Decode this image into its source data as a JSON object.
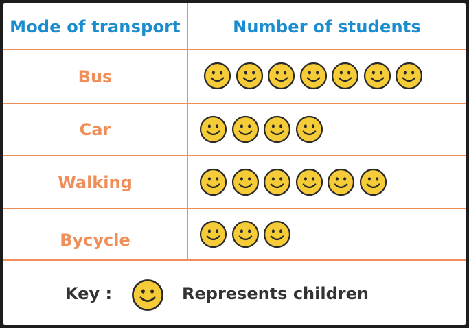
{
  "chart_data": {
    "type": "pictograph",
    "columns": [
      "Mode of transport",
      "Number of students"
    ],
    "categories": [
      "Bus",
      "Car",
      "Walking",
      "Bycycle"
    ],
    "values": [
      7,
      4,
      6,
      3
    ],
    "key": {
      "label": "Key :",
      "icon": "smiley-face",
      "text": "Represents children"
    }
  },
  "colors": {
    "header": "#1b8ccd",
    "category": "#ef8e58",
    "border": "#ef8e58",
    "icon_fill": "#f5cc37",
    "icon_stroke": "#2a2a2a"
  }
}
